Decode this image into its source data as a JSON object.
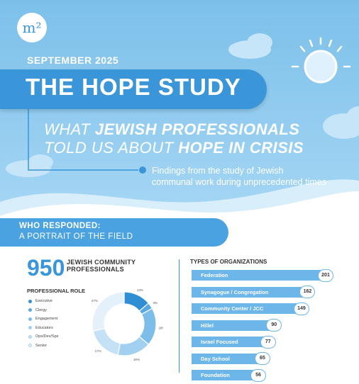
{
  "brand": {
    "logo_text": "m²"
  },
  "header": {
    "date": "SEPTEMBER 2025",
    "title": "THE HOPE STUDY",
    "subtitle_line1": {
      "pre": "WHAT ",
      "bold": "JEWISH PROFESSIONALS"
    },
    "subtitle_line2": {
      "pre": "TOLD US ABOUT ",
      "bold": "HOPE IN CRISIS"
    },
    "findings_line1": "Findings from the study of Jewish",
    "findings_line2": "communal work during unprecedented times"
  },
  "section": {
    "heading_line1": "WHO RESPONDED:",
    "heading_line2": "A PORTRAIT OF THE FIELD"
  },
  "respondents": {
    "count": "950",
    "label_line1": "JEWISH COMMUNITY",
    "label_line2": "PROFESSIONALS"
  },
  "chart_data": [
    {
      "type": "pie",
      "title": "PROFESSIONAL ROLE",
      "categories": [
        "Executive",
        "Clergy",
        "Engagement",
        "Educators",
        "Ops/Dev/Sps",
        "Senior"
      ],
      "values": [
        13,
        3,
        18,
        16,
        17,
        27
      ],
      "value_labels": [
        "13%",
        "3%",
        "18%",
        "16%",
        "17%",
        "27%"
      ],
      "colors": [
        "#2f8ed4",
        "#58a8e2",
        "#7dbdea",
        "#a2d0f0",
        "#c4e1f6",
        "#e4f1fb"
      ],
      "donut": true,
      "legend_position": "left"
    },
    {
      "type": "bar",
      "title": "TYPES OF ORGANIZATIONS",
      "categories": [
        "Federation",
        "Synagogue / Congregation",
        "Community Center / JCC",
        "Hillel",
        "Israel Focused",
        "Day School",
        "Foundation"
      ],
      "values": [
        201,
        162,
        149,
        90,
        77,
        65,
        56
      ],
      "orientation": "horizontal",
      "color": "#6cb6ea"
    }
  ],
  "colors": {
    "accent": "#3a96d8",
    "sky_top": "#7cc0ea",
    "bar": "#6cb6ea"
  }
}
